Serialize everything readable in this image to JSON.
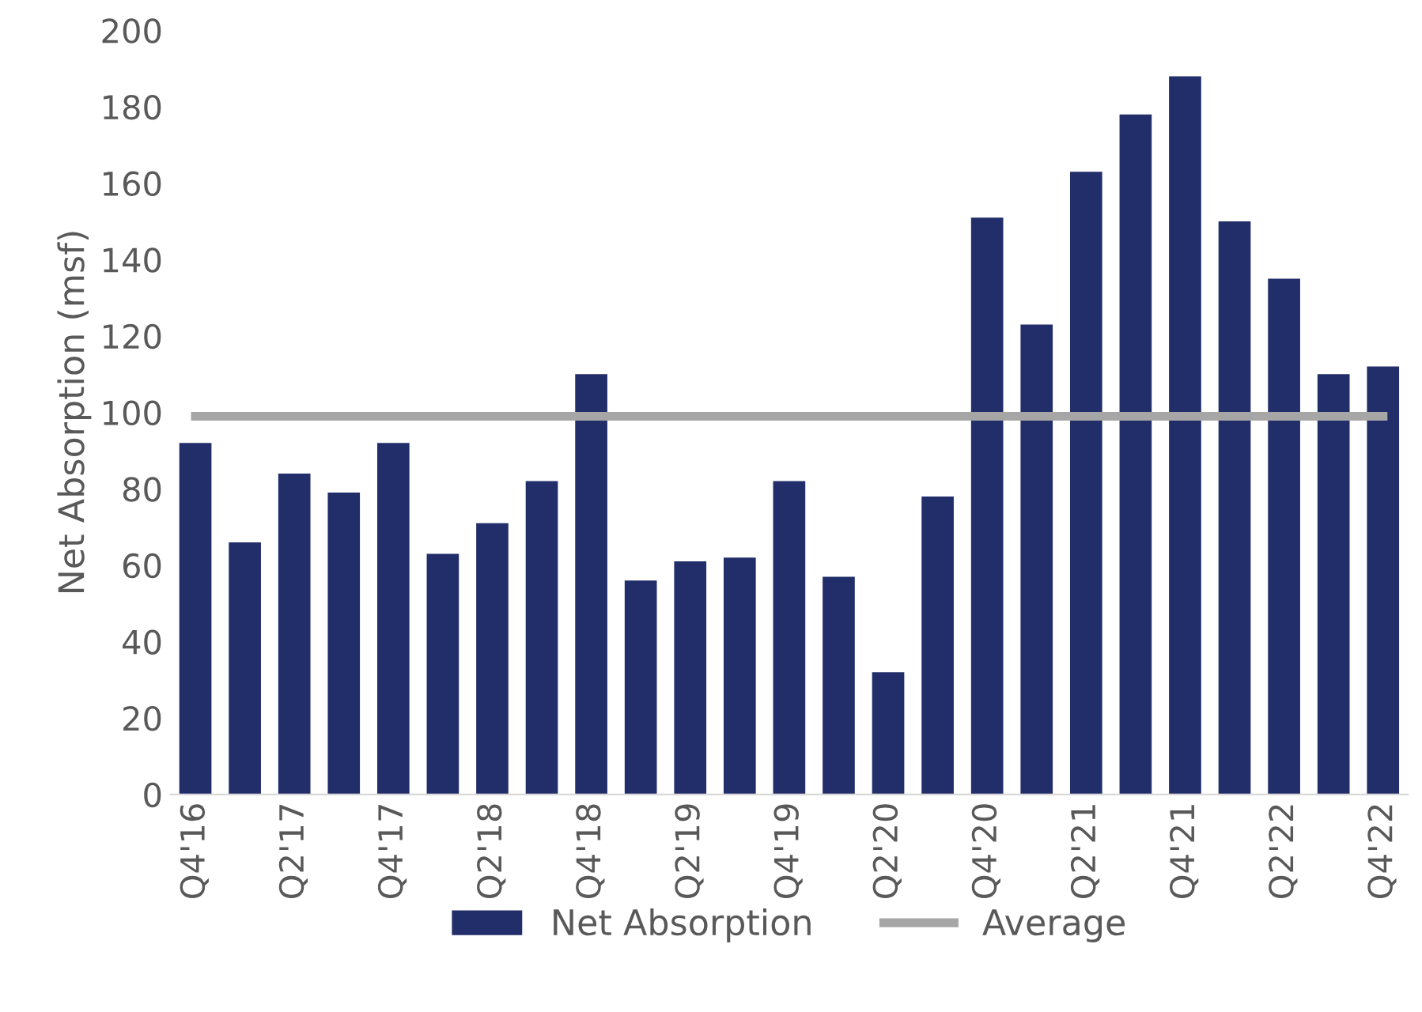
{
  "chart_data": {
    "type": "bar",
    "ylabel": "Net Absorption (msf)",
    "categories": [
      "Q4'16",
      null,
      "Q2'17",
      null,
      "Q4'17",
      null,
      "Q2'18",
      null,
      "Q4'18",
      null,
      "Q2'19",
      null,
      "Q4'19",
      null,
      "Q2'20",
      null,
      "Q4'20",
      null,
      "Q2'21",
      null,
      "Q4'21",
      null,
      "Q2'22",
      null,
      "Q4'22"
    ],
    "series": [
      {
        "name": "Net Absorption",
        "color": "#222e6a",
        "values": [
          92,
          66,
          84,
          79,
          92,
          63,
          71,
          82,
          110,
          56,
          61,
          62,
          82,
          57,
          32,
          78,
          151,
          123,
          163,
          178,
          188,
          150,
          135,
          110,
          112
        ]
      },
      {
        "name": "Average",
        "type": "line",
        "color": "#a6a6a6",
        "values": [
          99,
          99,
          99,
          99,
          99,
          99,
          99,
          99,
          99,
          99,
          99,
          99,
          99,
          99,
          99,
          99,
          99,
          99,
          99,
          99,
          99,
          99,
          99,
          99,
          99
        ]
      }
    ],
    "ylim": [
      0,
      200
    ],
    "yticks": [
      0,
      20,
      40,
      60,
      80,
      100,
      120,
      140,
      160,
      180,
      200
    ],
    "grid": false,
    "legend": "bottom"
  }
}
